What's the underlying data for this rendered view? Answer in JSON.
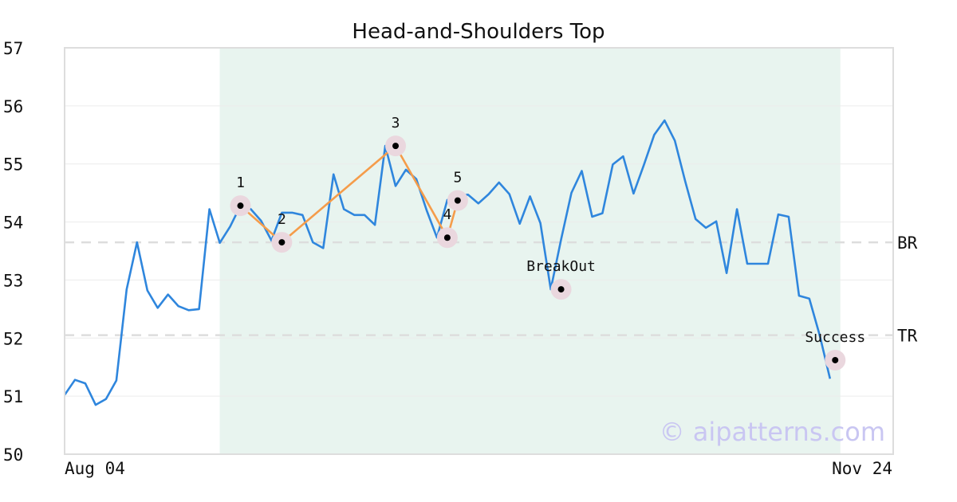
{
  "chart_data": {
    "type": "line",
    "title": "Head-and-Shoulders Top",
    "watermark": "© aipatterns.com",
    "ylim": [
      50,
      57
    ],
    "yticks": [
      "50",
      "51",
      "52",
      "53",
      "54",
      "55",
      "56",
      "57"
    ],
    "xticks": [
      "Aug 04",
      "Nov 24"
    ],
    "grid": true,
    "colors": {
      "price": "#2f86dd",
      "pattern": "#f59c4a",
      "band": "#e8f4ef",
      "level": "#dddddd",
      "marker_halo": "#ead7de",
      "marker": "#000000"
    },
    "price": [
      51.02,
      51.28,
      51.22,
      50.85,
      50.95,
      51.27,
      52.84,
      53.65,
      52.82,
      52.52,
      52.75,
      52.55,
      52.48,
      52.5,
      54.22,
      53.64,
      53.92,
      54.28,
      54.22,
      54.02,
      53.68,
      54.16,
      54.16,
      54.12,
      53.65,
      53.55,
      54.82,
      54.22,
      54.12,
      54.12,
      53.95,
      55.31,
      54.62,
      54.9,
      54.74,
      54.2,
      53.73,
      54.38,
      54.45,
      54.47,
      54.32,
      54.48,
      54.68,
      54.48,
      53.97,
      54.44,
      53.98,
      52.84,
      53.7,
      54.5,
      54.88,
      54.09,
      54.15,
      54.99,
      55.13,
      54.49,
      54.98,
      55.5,
      55.75,
      55.4,
      54.7,
      54.05,
      53.9,
      54.01,
      53.12,
      54.22,
      53.28,
      53.28,
      53.28,
      54.13,
      54.09,
      52.73,
      52.68,
      52.05,
      51.3
    ],
    "band": {
      "start_index": 15,
      "end_index": 75
    },
    "levels": [
      {
        "label": "BR",
        "value": 53.65
      },
      {
        "label": "TR",
        "value": 52.05
      }
    ],
    "pattern_points": [
      {
        "label": "1",
        "index": 17,
        "value": 54.28
      },
      {
        "label": "2",
        "index": 21,
        "value": 53.65
      },
      {
        "label": "3",
        "index": 32,
        "value": 55.31
      },
      {
        "label": "4",
        "index": 37,
        "value": 53.73
      },
      {
        "label": "5",
        "index": 38,
        "value": 54.37
      }
    ],
    "events": [
      {
        "label": "BreakOut",
        "index": 48,
        "value": 52.84
      },
      {
        "label": "Success",
        "index": 74.5,
        "value": 51.62
      }
    ]
  }
}
